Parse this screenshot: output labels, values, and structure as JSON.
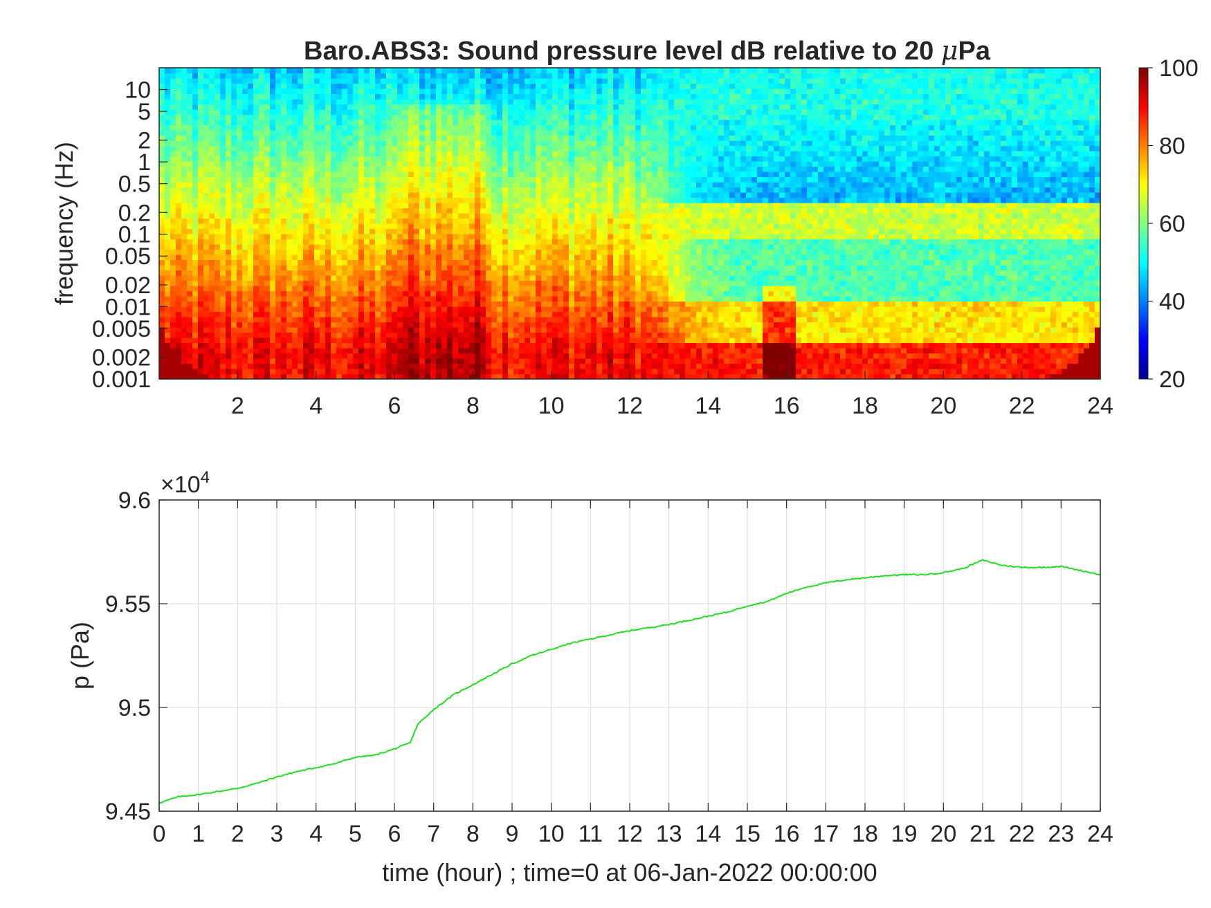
{
  "chart_data": [
    {
      "type": "heatmap",
      "title_prefix": "Baro.ABS3: Sound pressure level dB relative to 20 ",
      "title_mu": "μ",
      "title_suffix": "Pa",
      "ylabel": "frequency (Hz)",
      "xlabel": "",
      "x_range": [
        0,
        24
      ],
      "x_ticks": [
        2,
        4,
        6,
        8,
        10,
        12,
        14,
        16,
        18,
        20,
        22,
        24
      ],
      "x_tick_labels": [
        "2",
        "4",
        "6",
        "8",
        "10",
        "12",
        "14",
        "16",
        "18",
        "20",
        "22",
        "24"
      ],
      "y_scale": "log",
      "y_range": [
        0.001,
        20
      ],
      "y_ticks": [
        0.001,
        0.002,
        0.005,
        0.01,
        0.02,
        0.05,
        0.1,
        0.2,
        0.5,
        1,
        2,
        5,
        10
      ],
      "y_tick_labels": [
        "0.001",
        "0.002",
        "0.005",
        "0.01",
        "0.02",
        "0.05",
        "0.1",
        "0.2",
        "0.5",
        "1",
        "2",
        "5",
        "10"
      ],
      "colormap": "jet",
      "colorbar": {
        "range": [
          20,
          100
        ],
        "ticks": [
          20,
          40,
          60,
          80,
          100
        ],
        "tick_labels": [
          "20",
          "40",
          "60",
          "80",
          "100"
        ]
      }
    },
    {
      "type": "line",
      "xlabel": "time (hour) ; time=0 at 06-Jan-2022 00:00:00",
      "ylabel": "p (Pa)",
      "y_exponent_base": "×10",
      "y_exponent_power": "4",
      "x_range": [
        0,
        24
      ],
      "x_ticks": [
        0,
        1,
        2,
        3,
        4,
        5,
        6,
        7,
        8,
        9,
        10,
        11,
        12,
        13,
        14,
        15,
        16,
        17,
        18,
        19,
        20,
        21,
        22,
        23,
        24
      ],
      "x_tick_labels": [
        "0",
        "1",
        "2",
        "3",
        "4",
        "5",
        "6",
        "7",
        "8",
        "9",
        "10",
        "11",
        "12",
        "13",
        "14",
        "15",
        "16",
        "17",
        "18",
        "19",
        "20",
        "21",
        "22",
        "23",
        "24"
      ],
      "y_range": [
        94500,
        96000
      ],
      "y_ticks": [
        94500,
        95000,
        95500,
        96000
      ],
      "y_tick_labels": [
        "9.45",
        "9.5",
        "9.55",
        "9.6"
      ],
      "grid": true,
      "line_color": "#22dd22",
      "series": [
        {
          "x": [
            0,
            0.5,
            1,
            1.5,
            2,
            2.5,
            3,
            3.5,
            4,
            4.5,
            5,
            5.5,
            6,
            6.4,
            6.6,
            7,
            7.5,
            8,
            8.5,
            9,
            9.5,
            10,
            10.5,
            11,
            11.5,
            12,
            12.5,
            13,
            13.5,
            14,
            14.5,
            15,
            15.5,
            16,
            16.5,
            17,
            17.5,
            18,
            18.5,
            19,
            19.5,
            20,
            20.5,
            21,
            21.5,
            22,
            22.5,
            23,
            23.5,
            24
          ],
          "y": [
            94540,
            94570,
            94580,
            94595,
            94610,
            94635,
            94665,
            94690,
            94710,
            94730,
            94760,
            94770,
            94800,
            94830,
            94920,
            94990,
            95060,
            95110,
            95160,
            95210,
            95250,
            95280,
            95310,
            95330,
            95350,
            95370,
            95385,
            95400,
            95420,
            95440,
            95460,
            95490,
            95510,
            95550,
            95580,
            95600,
            95615,
            95625,
            95635,
            95640,
            95640,
            95650,
            95670,
            95710,
            95685,
            95675,
            95675,
            95680,
            95660,
            95640
          ]
        }
      ]
    }
  ]
}
